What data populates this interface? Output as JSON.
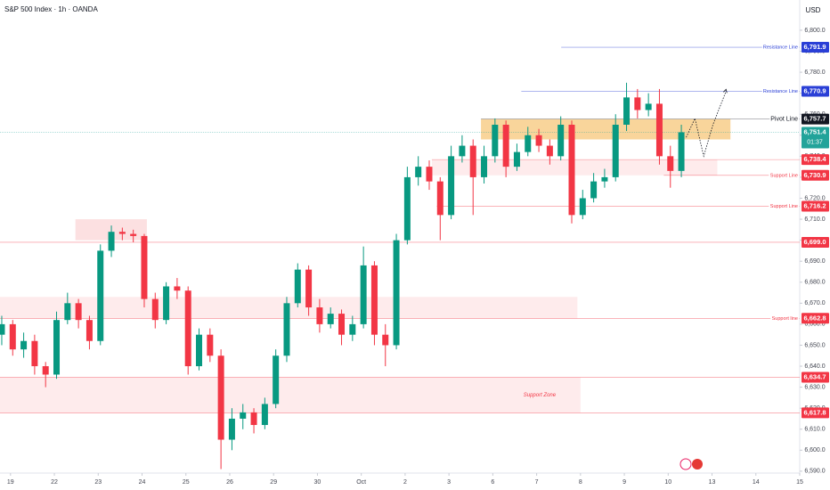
{
  "chart_data": {
    "type": "candlestick",
    "title": "S&P 500 Index · 1h · OANDA",
    "currency": "USD",
    "up_color": "#089981",
    "down_color": "#f23645",
    "xlim": [
      -0.24,
      18.0
    ],
    "ylim": [
      6589.1,
      6814.4
    ],
    "xticks": [
      {
        "value": 0,
        "label": "19"
      },
      {
        "value": 1,
        "label": "22"
      },
      {
        "value": 2,
        "label": "23"
      },
      {
        "value": 3,
        "label": "24"
      },
      {
        "value": 4,
        "label": "25"
      },
      {
        "value": 5,
        "label": "26"
      },
      {
        "value": 6,
        "label": "29"
      },
      {
        "value": 7,
        "label": "30"
      },
      {
        "value": 8,
        "label": "Oct"
      },
      {
        "value": 9,
        "label": "2"
      },
      {
        "value": 10,
        "label": "3"
      },
      {
        "value": 11,
        "label": "6"
      },
      {
        "value": 12,
        "label": "7"
      },
      {
        "value": 13,
        "label": "8"
      },
      {
        "value": 14,
        "label": "9"
      },
      {
        "value": 15,
        "label": "10"
      },
      {
        "value": 16,
        "label": "13"
      },
      {
        "value": 17,
        "label": "14"
      },
      {
        "value": 18,
        "label": "15"
      }
    ],
    "yticks": [
      {
        "value": 6590,
        "label": "6,590.0"
      },
      {
        "value": 6600,
        "label": "6,600.0"
      },
      {
        "value": 6610,
        "label": "6,610.0"
      },
      {
        "value": 6620,
        "label": "6,620.0"
      },
      {
        "value": 6630,
        "label": "6,630.0"
      },
      {
        "value": 6640,
        "label": "6,640.0"
      },
      {
        "value": 6650,
        "label": "6,650.0"
      },
      {
        "value": 6660,
        "label": "6,660.0"
      },
      {
        "value": 6670,
        "label": "6,670.0"
      },
      {
        "value": 6680,
        "label": "6,680.0"
      },
      {
        "value": 6690,
        "label": "6,690.0"
      },
      {
        "value": 6700,
        "label": "6,700.0"
      },
      {
        "value": 6710,
        "label": "6,710.0"
      },
      {
        "value": 6720,
        "label": "6,720.0"
      },
      {
        "value": 6730,
        "label": "6,730.0"
      },
      {
        "value": 6740,
        "label": "6,740.0"
      },
      {
        "value": 6750,
        "label": "6,750.0"
      },
      {
        "value": 6760,
        "label": "6,760.0"
      },
      {
        "value": 6770,
        "label": "6,770.0"
      },
      {
        "value": 6780,
        "label": "6,780.0"
      },
      {
        "value": 6790,
        "label": "6,790.0"
      },
      {
        "value": 6800,
        "label": "6,800.0"
      }
    ],
    "x": [
      -0.2,
      0.05,
      0.3,
      0.55,
      0.8,
      1.05,
      1.3,
      1.55,
      1.8,
      2.05,
      2.3,
      2.55,
      2.8,
      3.05,
      3.3,
      3.55,
      3.8,
      4.05,
      4.3,
      4.55,
      4.8,
      5.05,
      5.3,
      5.55,
      5.8,
      6.05,
      6.3,
      6.55,
      6.8,
      7.05,
      7.3,
      7.55,
      7.8,
      8.05,
      8.3,
      8.55,
      8.8,
      9.05,
      9.3,
      9.55,
      9.8,
      10.05,
      10.3,
      10.55,
      10.8,
      11.05,
      11.3,
      11.55,
      11.8,
      12.05,
      12.3,
      12.55,
      12.8,
      13.05,
      13.3,
      13.55,
      13.8,
      14.05,
      14.3,
      14.55,
      14.8,
      15.05,
      15.3
    ],
    "open": [
      6655,
      6660,
      6648,
      6652,
      6640,
      6636,
      6662,
      6670,
      6662,
      6652,
      6695,
      6704,
      6703,
      6702,
      6672,
      6662,
      6678,
      6676,
      6640,
      6655,
      6645,
      6605,
      6615,
      6618,
      6612,
      6622,
      6645,
      6670,
      6686,
      6668,
      6660,
      6665,
      6655,
      6660,
      6688,
      6655,
      6650,
      6700,
      6730,
      6735,
      6728,
      6712,
      6740,
      6745,
      6730,
      6740,
      6755,
      6735,
      6742,
      6750,
      6745,
      6740,
      6755,
      6712,
      6720,
      6728,
      6730,
      6755,
      6768,
      6762,
      6765,
      6740,
      6733
    ],
    "high": [
      6664,
      6662,
      6656,
      6655,
      6642,
      6666,
      6675,
      6672,
      6664,
      6698,
      6707,
      6706,
      6705,
      6703,
      6675,
      6680,
      6682,
      6678,
      6658,
      6658,
      6648,
      6620,
      6622,
      6620,
      6625,
      6648,
      6673,
      6689,
      6688,
      6672,
      6668,
      6667,
      6664,
      6697,
      6690,
      6660,
      6703,
      6735,
      6740,
      6738,
      6730,
      6745,
      6750,
      6748,
      6745,
      6758,
      6757,
      6746,
      6754,
      6753,
      6748,
      6759,
      6757,
      6724,
      6732,
      6734,
      6760,
      6775,
      6772,
      6770,
      6772,
      6745,
      6755
    ],
    "low": [
      6650,
      6645,
      6644,
      6636,
      6630,
      6634,
      6660,
      6658,
      6648,
      6650,
      6692,
      6700,
      6699,
      6668,
      6658,
      6660,
      6672,
      6636,
      6638,
      6642,
      6591,
      6600,
      6610,
      6608,
      6610,
      6620,
      6642,
      6668,
      6664,
      6656,
      6658,
      6650,
      6652,
      6658,
      6650,
      6640,
      6648,
      6698,
      6726,
      6724,
      6700,
      6710,
      6737,
      6712,
      6727,
      6737,
      6730,
      6733,
      6740,
      6742,
      6736,
      6738,
      6708,
      6710,
      6718,
      6725,
      6728,
      6752,
      6758,
      6759,
      6736,
      6725,
      6730
    ],
    "close": [
      6660,
      6648,
      6652,
      6640,
      6636,
      6662,
      6670,
      6662,
      6652,
      6695,
      6704,
      6703,
      6702,
      6672,
      6662,
      6678,
      6676,
      6640,
      6655,
      6645,
      6605,
      6615,
      6618,
      6612,
      6622,
      6645,
      6670,
      6686,
      6668,
      6660,
      6665,
      6655,
      6660,
      6688,
      6655,
      6650,
      6700,
      6730,
      6735,
      6728,
      6712,
      6740,
      6745,
      6730,
      6740,
      6755,
      6735,
      6742,
      6750,
      6745,
      6740,
      6755,
      6712,
      6720,
      6728,
      6730,
      6755,
      6768,
      6762,
      6765,
      6740,
      6733,
      6751.4
    ],
    "levels": [
      {
        "value": 6791.9,
        "label": "6,791.9",
        "text": "Resistance Line",
        "start": 12.56,
        "color": "#2a3fd6"
      },
      {
        "value": 6770.9,
        "label": "6,770.9",
        "text": "Resistance Line",
        "start": 11.65,
        "color": "#2a3fd6"
      },
      {
        "value": 6757.7,
        "label": "6,757.7",
        "text": "Pivot Line",
        "start": 10.73,
        "color": "#131722"
      },
      {
        "value": 6751.4,
        "label": "6,751.4",
        "countdown": "01:37",
        "start": -0.24,
        "color": "#22a39a"
      },
      {
        "value": 6738.4,
        "label": "6,738.4",
        "start": 9.61,
        "color": "#f23645"
      },
      {
        "value": 6730.9,
        "label": "6,730.9",
        "text": "Support Line",
        "start": 14.9,
        "color": "#f23645"
      },
      {
        "value": 6716.2,
        "label": "6,716.2",
        "text": "Support Line",
        "start": 9.72,
        "color": "#f23645"
      },
      {
        "value": 6699.0,
        "label": "6,699.0",
        "start": -0.24,
        "color": "#f23645"
      },
      {
        "value": 6662.8,
        "label": "6,662.8",
        "text": "Support line",
        "start": -0.24,
        "color": "#f23645"
      },
      {
        "value": 6634.7,
        "label": "6,634.7",
        "start": -0.24,
        "color": "#f23645"
      },
      {
        "value": 6617.8,
        "label": "6,617.8",
        "start": -0.24,
        "color": "#f23645"
      }
    ],
    "zones": [
      {
        "x": [
          10.73,
          16.42
        ],
        "y": [
          6748,
          6757.7
        ],
        "color": "#f7c77a"
      },
      {
        "x": [
          1.48,
          3.11
        ],
        "y": [
          6700,
          6710
        ],
        "color": "#fbd5d7"
      },
      {
        "x": [
          -0.24,
          12.93
        ],
        "y": [
          6662.8,
          6673
        ],
        "color": "#fde4e5"
      },
      {
        "x": [
          9.61,
          16.12
        ],
        "y": [
          6730.9,
          6738.4
        ],
        "color": "#fde4e5"
      },
      {
        "x": [
          -0.24,
          13.0
        ],
        "y": [
          6617.8,
          6634.7
        ],
        "color": "#fde4e5",
        "label": "Support Zone"
      }
    ],
    "projection": {
      "x": [
        15.41,
        15.61,
        15.81,
        16.02,
        16.32
      ],
      "y": [
        6749,
        6758,
        6740,
        6755,
        6771
      ]
    }
  }
}
